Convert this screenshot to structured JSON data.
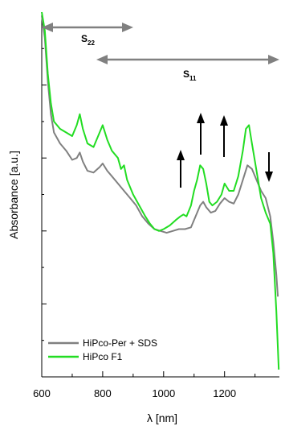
{
  "chart_data": {
    "type": "line",
    "xlabel": "λ [nm]",
    "ylabel": "Absorbance [a.u.]",
    "xlim": [
      600,
      1380
    ],
    "x_ticks": [
      600,
      800,
      1000,
      1200
    ],
    "x_tick_labels": [
      "600",
      "800",
      "1000",
      "1200"
    ],
    "x_minor_ticks": [
      700,
      900,
      1100,
      1300
    ],
    "ylim": [
      0,
      1
    ],
    "y_ticks": [
      0.2,
      0.4,
      0.6,
      0.8
    ],
    "y_tick_labels": [],
    "grid": false,
    "legend_position": "bottom-left",
    "series": [
      {
        "name": "HiPco-Per + SDS",
        "color": "#808080",
        "x": [
          600,
          610,
          620,
          630,
          640,
          660,
          680,
          700,
          715,
          725,
          735,
          750,
          770,
          790,
          800,
          815,
          830,
          850,
          870,
          890,
          910,
          930,
          950,
          970,
          990,
          1010,
          1030,
          1050,
          1070,
          1090,
          1105,
          1120,
          1130,
          1140,
          1155,
          1170,
          1185,
          1200,
          1215,
          1230,
          1245,
          1260,
          1275,
          1290,
          1305,
          1320,
          1335,
          1350,
          1360,
          1370,
          1375
        ],
        "values": [
          0.99,
          0.93,
          0.81,
          0.72,
          0.67,
          0.64,
          0.62,
          0.595,
          0.6,
          0.615,
          0.59,
          0.565,
          0.56,
          0.575,
          0.585,
          0.565,
          0.55,
          0.53,
          0.51,
          0.49,
          0.47,
          0.44,
          0.42,
          0.405,
          0.4,
          0.395,
          0.4,
          0.405,
          0.405,
          0.41,
          0.44,
          0.47,
          0.48,
          0.465,
          0.45,
          0.455,
          0.475,
          0.49,
          0.48,
          0.475,
          0.5,
          0.54,
          0.58,
          0.57,
          0.54,
          0.51,
          0.49,
          0.44,
          0.37,
          0.28,
          0.22
        ]
      },
      {
        "name": "HiPco F1",
        "color": "#22dd22",
        "x": [
          600,
          610,
          620,
          630,
          640,
          660,
          680,
          700,
          715,
          725,
          735,
          750,
          770,
          790,
          800,
          815,
          830,
          850,
          860,
          870,
          880,
          900,
          920,
          940,
          955,
          970,
          985,
          1000,
          1020,
          1040,
          1055,
          1065,
          1075,
          1090,
          1100,
          1110,
          1120,
          1130,
          1140,
          1150,
          1160,
          1175,
          1190,
          1200,
          1215,
          1230,
          1245,
          1260,
          1270,
          1280,
          1290,
          1300,
          1310,
          1320,
          1335,
          1350,
          1360,
          1370,
          1378
        ],
        "values": [
          1.0,
          0.95,
          0.83,
          0.75,
          0.7,
          0.68,
          0.67,
          0.66,
          0.69,
          0.72,
          0.68,
          0.64,
          0.63,
          0.67,
          0.69,
          0.65,
          0.62,
          0.6,
          0.57,
          0.58,
          0.54,
          0.5,
          0.47,
          0.44,
          0.42,
          0.405,
          0.4,
          0.405,
          0.415,
          0.43,
          0.44,
          0.445,
          0.44,
          0.47,
          0.51,
          0.54,
          0.58,
          0.57,
          0.53,
          0.48,
          0.47,
          0.48,
          0.5,
          0.53,
          0.51,
          0.51,
          0.55,
          0.62,
          0.68,
          0.69,
          0.64,
          0.59,
          0.54,
          0.49,
          0.45,
          0.42,
          0.34,
          0.18,
          0.02
        ]
      }
    ],
    "annotations": [
      {
        "main": "S",
        "sub": "22"
      },
      {
        "main": "S",
        "sub": "11"
      }
    ]
  }
}
